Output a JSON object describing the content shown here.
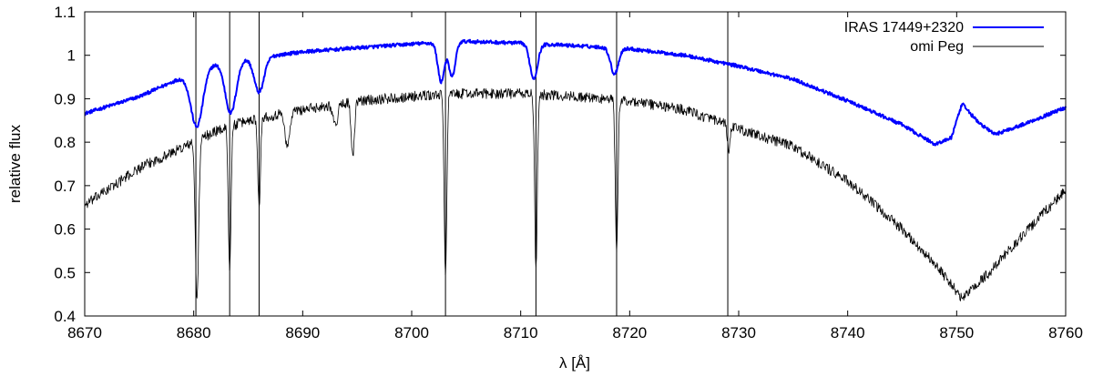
{
  "chart_data": {
    "type": "line",
    "xlabel": "λ [Å]",
    "ylabel": "relative flux",
    "xlim": [
      8670,
      8760
    ],
    "ylim": [
      0.4,
      1.1
    ],
    "x_ticks": [
      8670,
      8680,
      8690,
      8700,
      8710,
      8720,
      8730,
      8740,
      8750,
      8760
    ],
    "x_tick_labels": [
      "8670",
      "8680",
      "8690",
      "8700",
      "8710",
      "8720",
      "8730",
      "8740",
      "8750",
      "8760"
    ],
    "y_ticks": [
      0.4,
      0.5,
      0.6,
      0.7,
      0.8,
      0.9,
      1.0,
      1.1
    ],
    "y_tick_labels": [
      "0.4",
      "0.5",
      "0.6",
      "0.7",
      "0.8",
      "0.9",
      "1",
      "1.1"
    ],
    "grid": false,
    "legend_position": "top-right",
    "vertical_lines": [
      8680.2,
      8683.3,
      8686.0,
      8703.1,
      8711.4,
      8718.8,
      8729.0
    ],
    "series": [
      {
        "name": "IRAS 17449+2320",
        "color": "#0000ff",
        "continuum": [
          [
            8670,
            0.866
          ],
          [
            8675,
            0.905
          ],
          [
            8679.5,
            0.955
          ],
          [
            8681,
            0.975
          ],
          [
            8684,
            0.99
          ],
          [
            8687,
            0.998
          ],
          [
            8690,
            1.008
          ],
          [
            8695,
            1.017
          ],
          [
            8700,
            1.026
          ],
          [
            8705,
            1.032
          ],
          [
            8710,
            1.028
          ],
          [
            8715,
            1.022
          ],
          [
            8720,
            1.015
          ],
          [
            8725,
            1.0
          ],
          [
            8730,
            0.975
          ],
          [
            8735,
            0.945
          ],
          [
            8740,
            0.895
          ],
          [
            8745,
            0.84
          ],
          [
            8748,
            0.795
          ],
          [
            8749.5,
            0.81
          ],
          [
            8750.5,
            0.888
          ],
          [
            8752,
            0.845
          ],
          [
            8753.5,
            0.818
          ],
          [
            8756,
            0.84
          ],
          [
            8760,
            0.88
          ]
        ],
        "absorption_lines": [
          [
            8680.3,
            0.13,
            0.55
          ],
          [
            8683.4,
            0.12,
            0.5
          ],
          [
            8686.0,
            0.08,
            0.45
          ],
          [
            8702.7,
            0.09,
            0.3
          ],
          [
            8703.7,
            0.08,
            0.3
          ],
          [
            8711.2,
            0.08,
            0.35
          ],
          [
            8718.6,
            0.06,
            0.35
          ]
        ],
        "noise": 0.004
      },
      {
        "name": "omi Peg",
        "color": "#000000",
        "continuum": [
          [
            8670,
            0.655
          ],
          [
            8675,
            0.74
          ],
          [
            8680,
            0.8
          ],
          [
            8682,
            0.825
          ],
          [
            8685,
            0.85
          ],
          [
            8690,
            0.875
          ],
          [
            8695,
            0.895
          ],
          [
            8700,
            0.905
          ],
          [
            8705,
            0.912
          ],
          [
            8710,
            0.912
          ],
          [
            8715,
            0.905
          ],
          [
            8720,
            0.895
          ],
          [
            8725,
            0.875
          ],
          [
            8730,
            0.83
          ],
          [
            8735,
            0.79
          ],
          [
            8740,
            0.71
          ],
          [
            8745,
            0.6
          ],
          [
            8748,
            0.52
          ],
          [
            8750.5,
            0.44
          ],
          [
            8753,
            0.5
          ],
          [
            8756,
            0.585
          ],
          [
            8760,
            0.69
          ]
        ],
        "absorption_lines": [
          [
            8680.3,
            0.37,
            0.15
          ],
          [
            8683.3,
            0.33,
            0.12
          ],
          [
            8686.0,
            0.2,
            0.12
          ],
          [
            8688.6,
            0.08,
            0.2
          ],
          [
            8693.0,
            0.05,
            0.2
          ],
          [
            8694.6,
            0.13,
            0.15
          ],
          [
            8703.1,
            0.41,
            0.12
          ],
          [
            8711.4,
            0.4,
            0.12
          ],
          [
            8718.8,
            0.35,
            0.12
          ],
          [
            8729.1,
            0.06,
            0.12
          ]
        ],
        "noise": 0.012
      }
    ]
  }
}
